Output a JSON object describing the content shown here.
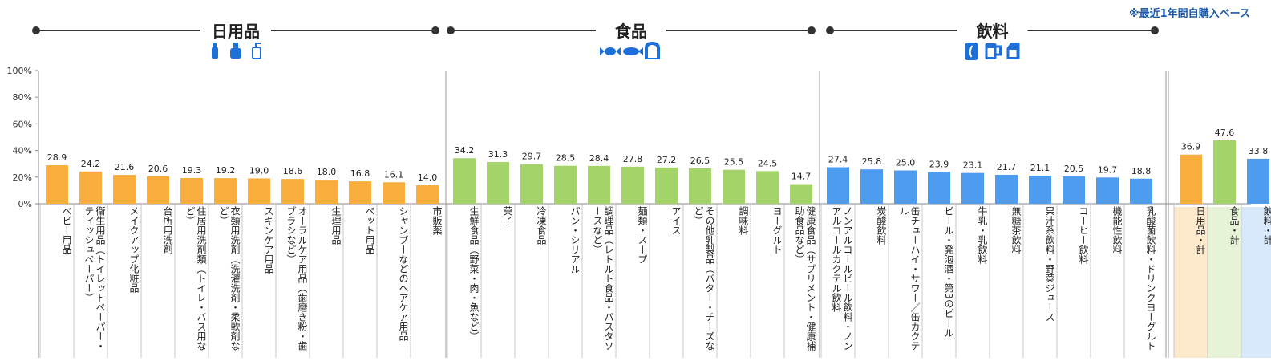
{
  "note": "※最近1年間自購入ベース",
  "chart_data": {
    "type": "bar",
    "ylim": [
      0,
      100
    ],
    "yticks": [
      "0%",
      "20%",
      "40%",
      "60%",
      "80%",
      "100%"
    ],
    "groups": [
      {
        "title": "日用品",
        "color": "#f8ad3c",
        "icons": [
          "baby-bottle-icon",
          "detergent-bottle-icon",
          "pump-bottle-icon"
        ],
        "items": [
          {
            "label": "ベビー用品",
            "value": 28.9
          },
          {
            "label": "衛生用品（トイレットペーパー・ティッシュペーパー）",
            "value": 24.2
          },
          {
            "label": "メイクアップ化粧品",
            "value": 21.6
          },
          {
            "label": "台所用洗剤",
            "value": 20.6
          },
          {
            "label": "住居用洗剤類（トイレ・バス用など）",
            "value": 19.3
          },
          {
            "label": "衣類用洗剤（洗濯洗剤・柔軟剤など）",
            "value": 19.2
          },
          {
            "label": "スキンケア用品",
            "value": 19.0
          },
          {
            "label": "オーラルケア用品（歯磨き粉・歯ブラシなど）",
            "value": 18.6
          },
          {
            "label": "生理用品",
            "value": 18.0
          },
          {
            "label": "ペット用品",
            "value": 16.8
          },
          {
            "label": "シャンプーなどのヘアケア用品",
            "value": 16.1
          },
          {
            "label": "市販薬",
            "value": 14.0
          }
        ]
      },
      {
        "title": "食品",
        "color": "#a4d36a",
        "icons": [
          "candy-icon",
          "fish-icon",
          "bread-icon"
        ],
        "items": [
          {
            "label": "生鮮食品（野菜・肉・魚など）",
            "value": 34.2
          },
          {
            "label": "菓子",
            "value": 31.3
          },
          {
            "label": "冷凍食品",
            "value": 29.7
          },
          {
            "label": "パン・シリアル",
            "value": 28.5
          },
          {
            "label": "調理品（レトルト食品・パスタソースなど）",
            "value": 28.4
          },
          {
            "label": "麺類・スープ",
            "value": 27.8
          },
          {
            "label": "アイス",
            "value": 27.2
          },
          {
            "label": "その他乳製品（バター・チーズなど）",
            "value": 26.5
          },
          {
            "label": "調味料",
            "value": 25.5
          },
          {
            "label": "ヨーグルト",
            "value": 24.5
          },
          {
            "label": "健康食品（サプリメント・健康補助食品など）",
            "value": 14.7
          }
        ]
      },
      {
        "title": "飲料",
        "color": "#4d9cf0",
        "icons": [
          "bottle-icon",
          "beer-mug-icon",
          "milk-carton-icon"
        ],
        "items": [
          {
            "label": "ノンアルコールビール飲料・ノンアルコールカクテル飲料",
            "value": 27.4
          },
          {
            "label": "炭酸飲料",
            "value": 25.8
          },
          {
            "label": "缶チューハイ・サワー／缶カクテル",
            "value": 25.0
          },
          {
            "label": "ビール・発泡酒・第3のビール",
            "value": 23.9
          },
          {
            "label": "牛乳・乳飲料",
            "value": 23.1
          },
          {
            "label": "無糖茶飲料",
            "value": 21.7
          },
          {
            "label": "果汁系飲料・野菜ジュース",
            "value": 21.1
          },
          {
            "label": "コーヒー飲料",
            "value": 20.5
          },
          {
            "label": "機能性飲料",
            "value": 19.7
          },
          {
            "label": "乳酸菌飲料・ドリンクヨーグルト",
            "value": 18.8
          }
        ]
      }
    ],
    "totals": [
      {
        "label": "日用品・計",
        "value": 36.9,
        "color": "#f8ad3c",
        "bg": "#fde9cc"
      },
      {
        "label": "食品・計",
        "value": 47.6,
        "color": "#a4d36a",
        "bg": "#e6f3d6"
      },
      {
        "label": "飲料・計",
        "value": 33.8,
        "color": "#4d9cf0",
        "bg": "#d8e9fb"
      }
    ]
  }
}
